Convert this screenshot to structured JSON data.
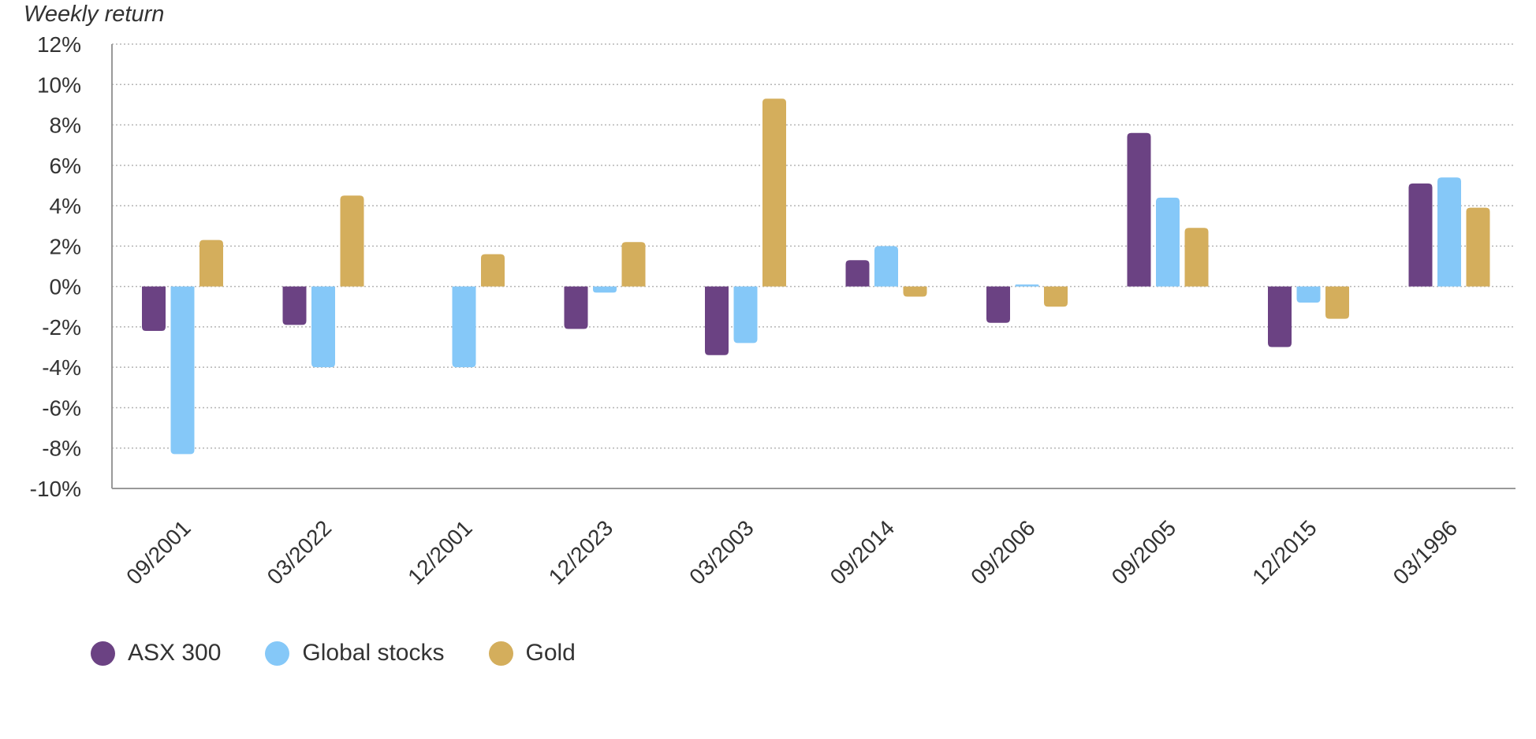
{
  "chart_data": {
    "type": "bar",
    "ylabel": "Weekly return",
    "xlabel": "",
    "ylim": [
      -10,
      12
    ],
    "yticks": [
      12,
      10,
      8,
      6,
      4,
      2,
      0,
      -2,
      -4,
      -6,
      -8,
      -10
    ],
    "ytick_labels": [
      "12%",
      "10%",
      "8%",
      "6%",
      "4%",
      "2%",
      "0%",
      "-2%",
      "-4%",
      "-6%",
      "-8%",
      "-10%"
    ],
    "grid": true,
    "legend_position": "bottom-left",
    "categories": [
      "09/2001",
      "03/2022",
      "12/2001",
      "12/2023",
      "03/2003",
      "09/2014",
      "09/2006",
      "09/2005",
      "12/2015",
      "03/1996"
    ],
    "series": [
      {
        "name": "ASX 300",
        "color": "#6b4283",
        "values": [
          -2.2,
          -1.9,
          0.0,
          -2.1,
          -3.4,
          1.3,
          -1.8,
          7.6,
          -3.0,
          5.1
        ]
      },
      {
        "name": "Global stocks",
        "color": "#85c8f8",
        "values": [
          -8.3,
          -4.0,
          -4.0,
          -0.3,
          -2.8,
          2.0,
          0.1,
          4.4,
          -0.8,
          5.4
        ]
      },
      {
        "name": "Gold",
        "color": "#d4ae5c",
        "values": [
          2.3,
          4.5,
          1.6,
          2.2,
          9.3,
          -0.5,
          -1.0,
          2.9,
          -1.6,
          3.9
        ]
      }
    ]
  }
}
